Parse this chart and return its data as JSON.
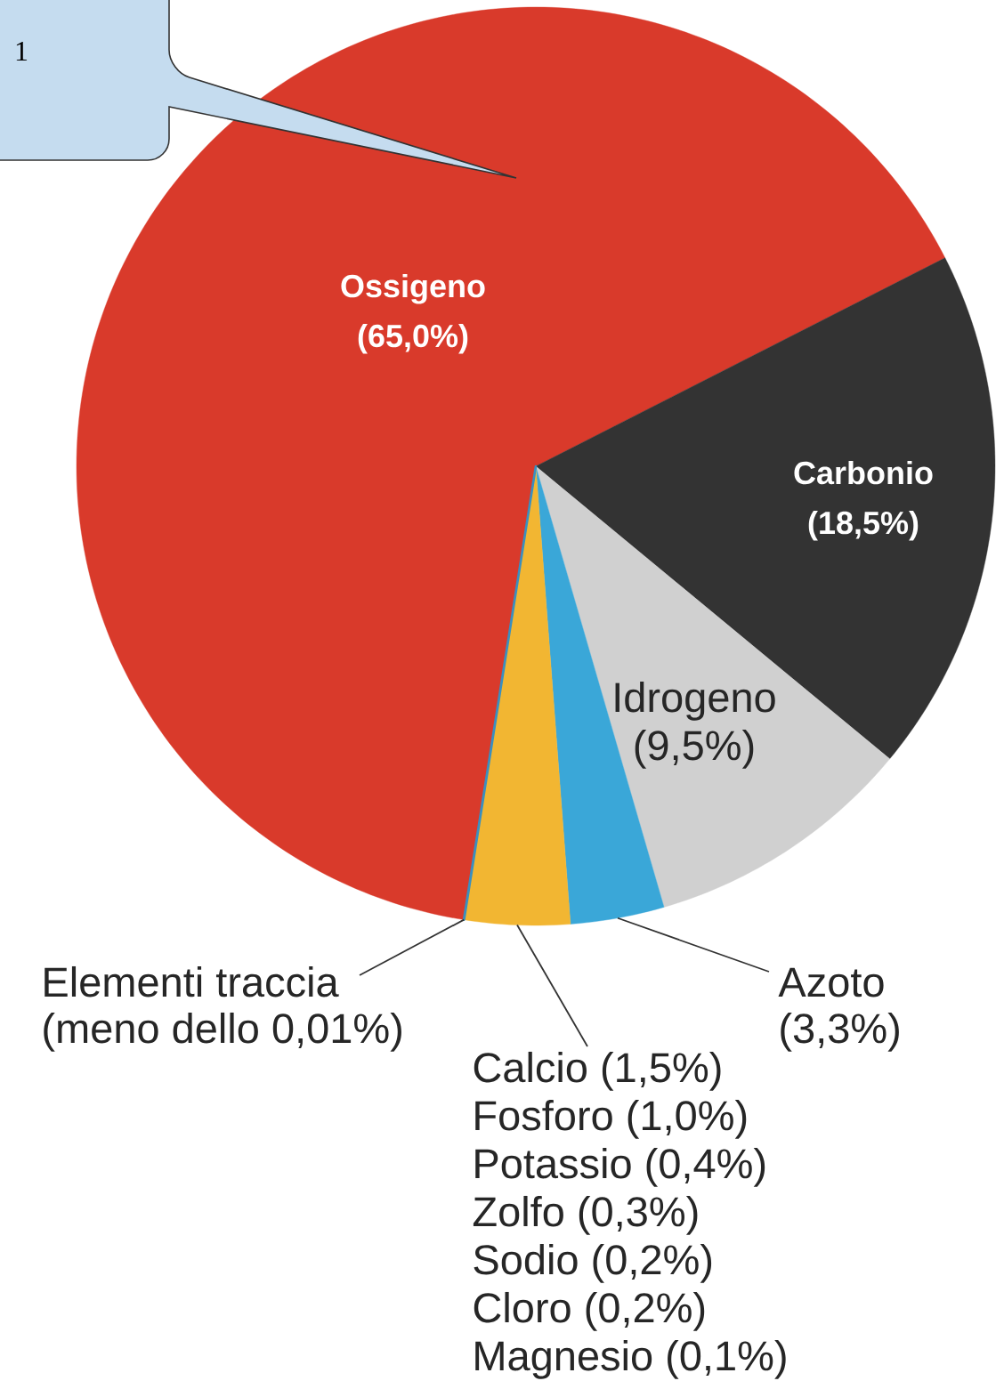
{
  "chart_data": {
    "type": "pie",
    "categories": [
      "Ossigeno",
      "Carbonio",
      "Idrogeno",
      "Azoto",
      null,
      "Elementi traccia"
    ],
    "values": [
      65.0,
      18.5,
      9.5,
      3.3,
      3.7,
      0.01
    ],
    "value_labels": [
      "(65,0%)",
      "(18,5%)",
      "(9,5%)",
      "(3,3%)",
      null,
      "(meno dello 0,01%)"
    ],
    "colors": [
      "#d93a2b",
      "#333333",
      "#d0d0d0",
      "#3aa7d8",
      "#f2b632",
      "#3a8fc0"
    ],
    "annotations": [
      "1",
      "Calcio (1,5%)",
      "Fosforo (1,0%)",
      "Potassio (0,4%)",
      "Zolfo (0,3%)",
      "Sodio (0,2%)",
      "Cloro (0,2%)",
      "Magnesio (0,1%)"
    ]
  }
}
